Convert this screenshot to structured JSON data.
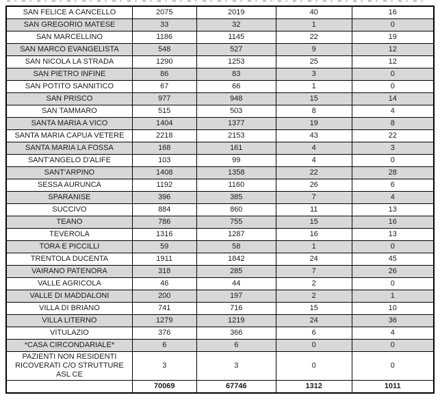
{
  "colors": {
    "row_shading": "#d8d8d8",
    "border": "#000000",
    "text": "#1b1b1b",
    "background": "#ffffff"
  },
  "table": {
    "rows": [
      {
        "name": "SAN FELICE A CANCELLO",
        "values": [
          2075,
          2019,
          40,
          16
        ]
      },
      {
        "name": "SAN GREGORIO MATESE",
        "values": [
          33,
          32,
          1,
          0
        ]
      },
      {
        "name": "SAN MARCELLINO",
        "values": [
          1186,
          1145,
          22,
          19
        ]
      },
      {
        "name": "SAN MARCO EVANGELISTA",
        "values": [
          548,
          527,
          9,
          12
        ]
      },
      {
        "name": "SAN NICOLA LA STRADA",
        "values": [
          1290,
          1253,
          25,
          12
        ]
      },
      {
        "name": "SAN PIETRO INFINE",
        "values": [
          86,
          83,
          3,
          0
        ]
      },
      {
        "name": "SAN POTITO SANNITICO",
        "values": [
          67,
          66,
          1,
          0
        ]
      },
      {
        "name": "SAN PRISCO",
        "values": [
          977,
          948,
          15,
          14
        ]
      },
      {
        "name": "SAN TAMMARO",
        "values": [
          515,
          503,
          8,
          4
        ]
      },
      {
        "name": "SANTA MARIA A VICO",
        "values": [
          1404,
          1377,
          19,
          8
        ]
      },
      {
        "name": "SANTA MARIA CAPUA VETERE",
        "values": [
          2218,
          2153,
          43,
          22
        ]
      },
      {
        "name": "SANTA MARIA LA FOSSA",
        "values": [
          168,
          161,
          4,
          3
        ]
      },
      {
        "name": "SANT'ANGELO D'ALIFE",
        "values": [
          103,
          99,
          4,
          0
        ]
      },
      {
        "name": "SANT'ARPINO",
        "values": [
          1408,
          1358,
          22,
          28
        ]
      },
      {
        "name": "SESSA AURUNCA",
        "values": [
          1192,
          1160,
          26,
          6
        ]
      },
      {
        "name": "SPARANISE",
        "values": [
          396,
          385,
          7,
          4
        ]
      },
      {
        "name": "SUCCIVO",
        "values": [
          884,
          860,
          11,
          13
        ]
      },
      {
        "name": "TEANO",
        "values": [
          786,
          755,
          15,
          16
        ]
      },
      {
        "name": "TEVEROLA",
        "values": [
          1316,
          1287,
          16,
          13
        ]
      },
      {
        "name": "TORA E PICCILLI",
        "values": [
          59,
          58,
          1,
          0
        ]
      },
      {
        "name": "TRENTOLA DUCENTA",
        "values": [
          1911,
          1842,
          24,
          45
        ]
      },
      {
        "name": "VAIRANO PATENORA",
        "values": [
          318,
          285,
          7,
          26
        ]
      },
      {
        "name": "VALLE AGRICOLA",
        "values": [
          46,
          44,
          2,
          0
        ]
      },
      {
        "name": "VALLE DI MADDALONI",
        "values": [
          200,
          197,
          2,
          1
        ]
      },
      {
        "name": "VILLA DI BRIANO",
        "values": [
          741,
          716,
          15,
          10
        ]
      },
      {
        "name": "VILLA LITERNO",
        "values": [
          1279,
          1219,
          24,
          36
        ]
      },
      {
        "name": "VITULAZIO",
        "values": [
          376,
          366,
          6,
          4
        ]
      },
      {
        "name": "*CASA CIRCONDARIALE*",
        "values": [
          6,
          6,
          0,
          0
        ]
      },
      {
        "name": "PAZIENTI NON RESIDENTI RICOVERATI C/O STRUTTURE ASL CE",
        "values": [
          3,
          3,
          0,
          0
        ]
      }
    ],
    "totals": {
      "label": "",
      "values": [
        70069,
        67746,
        1312,
        1011
      ]
    }
  }
}
